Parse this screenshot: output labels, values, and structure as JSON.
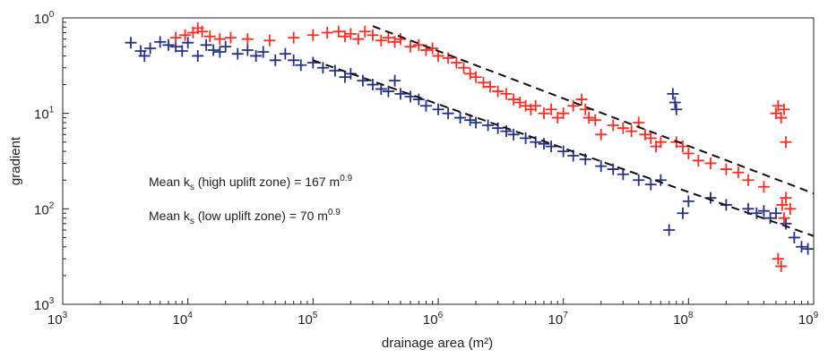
{
  "chart_data": {
    "type": "scatter",
    "title": "",
    "xlabel": "drainage area (m²)",
    "ylabel": "gradient",
    "xscale": "log",
    "yscale": "log",
    "xlim": [
      1000,
      1000000000
    ],
    "ylim": [
      0.001,
      1
    ],
    "x_ticks": [
      {
        "value": 1000,
        "base": "10",
        "exp": "3"
      },
      {
        "value": 10000,
        "base": "10",
        "exp": "4"
      },
      {
        "value": 100000,
        "base": "10",
        "exp": "5"
      },
      {
        "value": 1000000,
        "base": "10",
        "exp": "6"
      },
      {
        "value": 10000000,
        "base": "10",
        "exp": "7"
      },
      {
        "value": 100000000,
        "base": "10",
        "exp": "8"
      },
      {
        "value": 1000000000,
        "base": "10",
        "exp": "9"
      }
    ],
    "y_ticks": [
      {
        "value": 1,
        "base": "10",
        "exp": "0"
      },
      {
        "value": 0.1,
        "base": "10",
        "exp": "1"
      },
      {
        "value": 0.01,
        "base": "10",
        "exp": "2"
      },
      {
        "value": 0.001,
        "base": "10",
        "exp": "3"
      }
    ],
    "grid": false,
    "marker": "+",
    "series": [
      {
        "name": "high uplift zone",
        "color": "#ff2a1f",
        "points": [
          [
            8000,
            0.62
          ],
          [
            9500,
            0.66
          ],
          [
            11000,
            0.7
          ],
          [
            12000,
            0.78
          ],
          [
            13000,
            0.72
          ],
          [
            15000,
            0.64
          ],
          [
            18000,
            0.6
          ],
          [
            22000,
            0.62
          ],
          [
            30000,
            0.6
          ],
          [
            45000,
            0.58
          ],
          [
            70000,
            0.62
          ],
          [
            100000,
            0.66
          ],
          [
            130000,
            0.7
          ],
          [
            160000,
            0.72
          ],
          [
            180000,
            0.64
          ],
          [
            200000,
            0.68
          ],
          [
            230000,
            0.6
          ],
          [
            260000,
            0.72
          ],
          [
            300000,
            0.66
          ],
          [
            350000,
            0.58
          ],
          [
            400000,
            0.62
          ],
          [
            450000,
            0.56
          ],
          [
            500000,
            0.6
          ],
          [
            600000,
            0.5
          ],
          [
            700000,
            0.52
          ],
          [
            800000,
            0.46
          ],
          [
            900000,
            0.48
          ],
          [
            1000000,
            0.4
          ],
          [
            1200000,
            0.38
          ],
          [
            1400000,
            0.34
          ],
          [
            1600000,
            0.3
          ],
          [
            1800000,
            0.26
          ],
          [
            2000000,
            0.24
          ],
          [
            2300000,
            0.21
          ],
          [
            2600000,
            0.19
          ],
          [
            3000000,
            0.17
          ],
          [
            3500000,
            0.16
          ],
          [
            4000000,
            0.14
          ],
          [
            4500000,
            0.13
          ],
          [
            5000000,
            0.12
          ],
          [
            5500000,
            0.11
          ],
          [
            6000000,
            0.12
          ],
          [
            7000000,
            0.1
          ],
          [
            8000000,
            0.11
          ],
          [
            9000000,
            0.09
          ],
          [
            10000000,
            0.1
          ],
          [
            12000000,
            0.12
          ],
          [
            14000000,
            0.14
          ],
          [
            15000000,
            0.11
          ],
          [
            16000000,
            0.09
          ],
          [
            18000000,
            0.085
          ],
          [
            20000000,
            0.06
          ],
          [
            25000000,
            0.075
          ],
          [
            30000000,
            0.07
          ],
          [
            35000000,
            0.065
          ],
          [
            40000000,
            0.08
          ],
          [
            45000000,
            0.06
          ],
          [
            50000000,
            0.055
          ],
          [
            55000000,
            0.045
          ],
          [
            60000000,
            0.05
          ],
          [
            80000000,
            0.05
          ],
          [
            90000000,
            0.045
          ],
          [
            100000000,
            0.038
          ],
          [
            120000000,
            0.032
          ],
          [
            150000000,
            0.03
          ],
          [
            200000000,
            0.026
          ],
          [
            250000000,
            0.024
          ],
          [
            300000000,
            0.02
          ],
          [
            400000000,
            0.017
          ],
          [
            500000000,
            0.1
          ],
          [
            520000000,
            0.12
          ],
          [
            550000000,
            0.09
          ],
          [
            580000000,
            0.11
          ],
          [
            600000000,
            0.05
          ],
          [
            520000000,
            0.003
          ],
          [
            550000000,
            0.0025
          ],
          [
            560000000,
            0.011
          ],
          [
            580000000,
            0.008
          ],
          [
            600000000,
            0.013
          ],
          [
            650000000,
            0.01
          ]
        ]
      },
      {
        "name": "low uplift zone",
        "color": "#24308c",
        "points": [
          [
            3500,
            0.55
          ],
          [
            4200,
            0.45
          ],
          [
            4500,
            0.4
          ],
          [
            5000,
            0.48
          ],
          [
            6000,
            0.56
          ],
          [
            7000,
            0.52
          ],
          [
            8000,
            0.5
          ],
          [
            9000,
            0.45
          ],
          [
            10000,
            0.55
          ],
          [
            12000,
            0.4
          ],
          [
            14000,
            0.52
          ],
          [
            16000,
            0.46
          ],
          [
            18000,
            0.44
          ],
          [
            20000,
            0.5
          ],
          [
            25000,
            0.42
          ],
          [
            30000,
            0.46
          ],
          [
            35000,
            0.4
          ],
          [
            40000,
            0.44
          ],
          [
            50000,
            0.36
          ],
          [
            60000,
            0.42
          ],
          [
            70000,
            0.36
          ],
          [
            80000,
            0.32
          ],
          [
            100000,
            0.34
          ],
          [
            120000,
            0.3
          ],
          [
            150000,
            0.28
          ],
          [
            180000,
            0.24
          ],
          [
            200000,
            0.26
          ],
          [
            250000,
            0.22
          ],
          [
            300000,
            0.2
          ],
          [
            350000,
            0.18
          ],
          [
            400000,
            0.17
          ],
          [
            450000,
            0.22
          ],
          [
            500000,
            0.16
          ],
          [
            600000,
            0.15
          ],
          [
            700000,
            0.14
          ],
          [
            800000,
            0.12
          ],
          [
            1000000,
            0.11
          ],
          [
            1200000,
            0.1
          ],
          [
            1500000,
            0.09
          ],
          [
            1800000,
            0.085
          ],
          [
            2000000,
            0.08
          ],
          [
            2500000,
            0.075
          ],
          [
            3000000,
            0.07
          ],
          [
            3500000,
            0.065
          ],
          [
            4000000,
            0.06
          ],
          [
            5000000,
            0.055
          ],
          [
            6000000,
            0.05
          ],
          [
            7000000,
            0.048
          ],
          [
            8000000,
            0.045
          ],
          [
            10000000,
            0.04
          ],
          [
            12000000,
            0.036
          ],
          [
            15000000,
            0.033
          ],
          [
            20000000,
            0.028
          ],
          [
            25000000,
            0.026
          ],
          [
            30000000,
            0.023
          ],
          [
            40000000,
            0.02
          ],
          [
            50000000,
            0.018
          ],
          [
            60000000,
            0.02
          ],
          [
            70000000,
            0.006
          ],
          [
            75000000,
            0.16
          ],
          [
            78000000,
            0.13
          ],
          [
            80000000,
            0.11
          ],
          [
            90000000,
            0.009
          ],
          [
            100000000,
            0.012
          ],
          [
            150000000,
            0.013
          ],
          [
            200000000,
            0.011
          ],
          [
            300000000,
            0.01
          ],
          [
            350000000,
            0.009
          ],
          [
            400000000,
            0.0095
          ],
          [
            450000000,
            0.008
          ],
          [
            500000000,
            0.009
          ],
          [
            600000000,
            0.007
          ],
          [
            700000000,
            0.005
          ],
          [
            800000000,
            0.004
          ],
          [
            900000000,
            0.0038
          ]
        ]
      }
    ],
    "trend_lines": [
      {
        "name": "high uplift zone trend",
        "color": "#111111",
        "x": [
          300000,
          1000000000
        ],
        "y": [
          0.82,
          0.0145
        ]
      },
      {
        "name": "low uplift zone trend",
        "color": "#111111",
        "x": [
          100000,
          1000000000
        ],
        "y": [
          0.36,
          0.0052
        ]
      }
    ],
    "annotations": [
      {
        "prefix": "Mean k",
        "sub": "s",
        "middle": " (high uplift zone) = 167 m",
        "sup": "0.9"
      },
      {
        "prefix": "Mean k",
        "sub": "s",
        "middle": " (low uplift zone) = 70 m",
        "sup": "0.9"
      }
    ]
  }
}
